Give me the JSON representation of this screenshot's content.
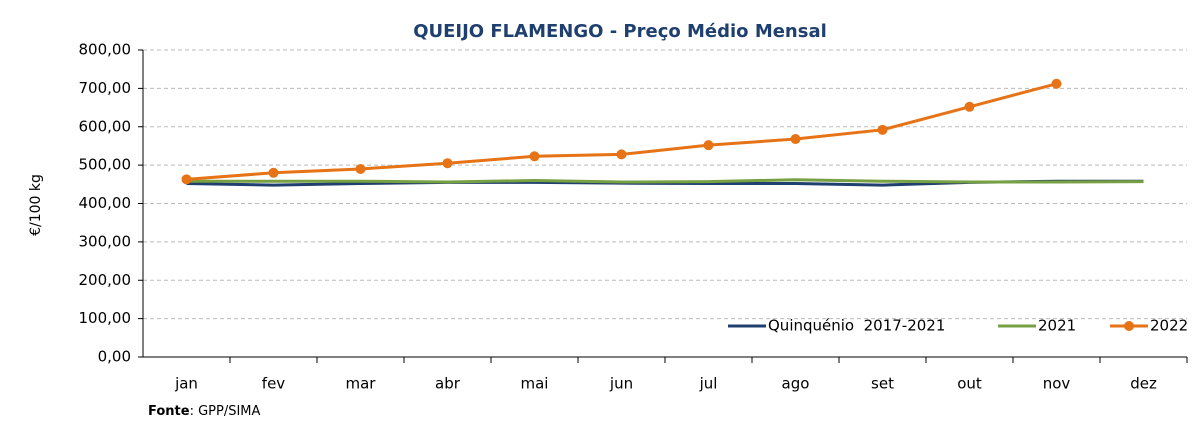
{
  "chart_data": {
    "type": "line",
    "title": "QUEIJO FLAMENGO - Preço Médio Mensal",
    "y_label": "€/100 kg",
    "categories": [
      "jan",
      "fev",
      "mar",
      "abr",
      "mai",
      "jun",
      "jul",
      "ago",
      "set",
      "out",
      "nov",
      "dez"
    ],
    "series": [
      {
        "name": "Quinquénio  2017-2021",
        "color": "#1f3f6e",
        "marker": "none",
        "values": [
          452,
          448,
          452,
          455,
          455,
          453,
          452,
          452,
          448,
          455,
          458,
          458
        ]
      },
      {
        "name": "2021",
        "color": "#77a043",
        "marker": "none",
        "values": [
          458,
          458,
          458,
          456,
          460,
          456,
          457,
          462,
          458,
          456,
          456,
          457
        ]
      },
      {
        "name": "2022",
        "color": "#e67315",
        "marker": "circle",
        "values": [
          463,
          480,
          490,
          505,
          523,
          528,
          552,
          568,
          592,
          652,
          712,
          null
        ]
      }
    ],
    "ylim": [
      0,
      800
    ],
    "yticks": [
      {
        "value": 0,
        "label": "0,00"
      },
      {
        "value": 100,
        "label": "100,00"
      },
      {
        "value": 200,
        "label": "200,00"
      },
      {
        "value": 300,
        "label": "300,00"
      },
      {
        "value": 400,
        "label": "400,00"
      },
      {
        "value": 500,
        "label": "500,00"
      },
      {
        "value": 600,
        "label": "600,00"
      },
      {
        "value": 700,
        "label": "700,00"
      },
      {
        "value": 800,
        "label": "800,00"
      }
    ],
    "grid": true,
    "legend": "bottom-right",
    "source_label": "Fonte",
    "source_text": ": GPP/SIMA"
  }
}
